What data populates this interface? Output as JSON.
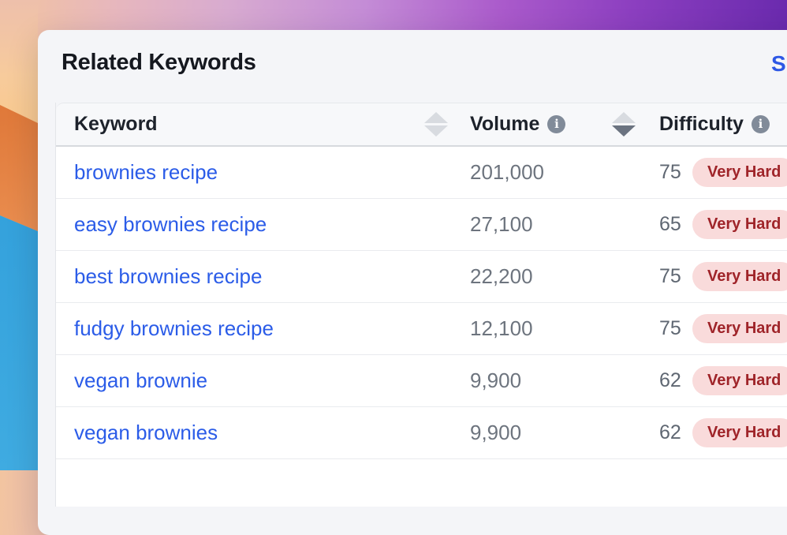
{
  "card": {
    "title": "Related Keywords",
    "link_text": "S"
  },
  "icons": {
    "info_glyph": "i"
  },
  "table": {
    "columns": {
      "keyword": {
        "label": "Keyword",
        "sortable": true,
        "sort_direction": "none"
      },
      "volume": {
        "label": "Volume",
        "has_info": true,
        "sortable": true,
        "sort_direction": "desc"
      },
      "difficulty": {
        "label": "Difficulty",
        "has_info": true
      }
    },
    "rows": [
      {
        "keyword": "brownies recipe",
        "volume": "201,000",
        "difficulty": "75",
        "difficulty_label": "Very Hard"
      },
      {
        "keyword": "easy brownies recipe",
        "volume": "27,100",
        "difficulty": "65",
        "difficulty_label": "Very Hard"
      },
      {
        "keyword": "best brownies recipe",
        "volume": "22,200",
        "difficulty": "75",
        "difficulty_label": "Very Hard"
      },
      {
        "keyword": "fudgy brownies recipe",
        "volume": "12,100",
        "difficulty": "75",
        "difficulty_label": "Very Hard"
      },
      {
        "keyword": "vegan brownie",
        "volume": "9,900",
        "difficulty": "62",
        "difficulty_label": "Very Hard"
      },
      {
        "keyword": "vegan brownies",
        "volume": "9,900",
        "difficulty": "62",
        "difficulty_label": "Very Hard"
      }
    ]
  },
  "colors": {
    "link_blue": "#2b5ce8",
    "badge_background": "#f9dbdb",
    "badge_text": "#9f2429",
    "card_background": "#f4f5f8",
    "wallpaper_purple": "#6527ab",
    "wallpaper_orange": "#e07a3b",
    "wallpaper_blue": "#36a3dd",
    "wallpaper_peach": "#f7cb9c"
  }
}
